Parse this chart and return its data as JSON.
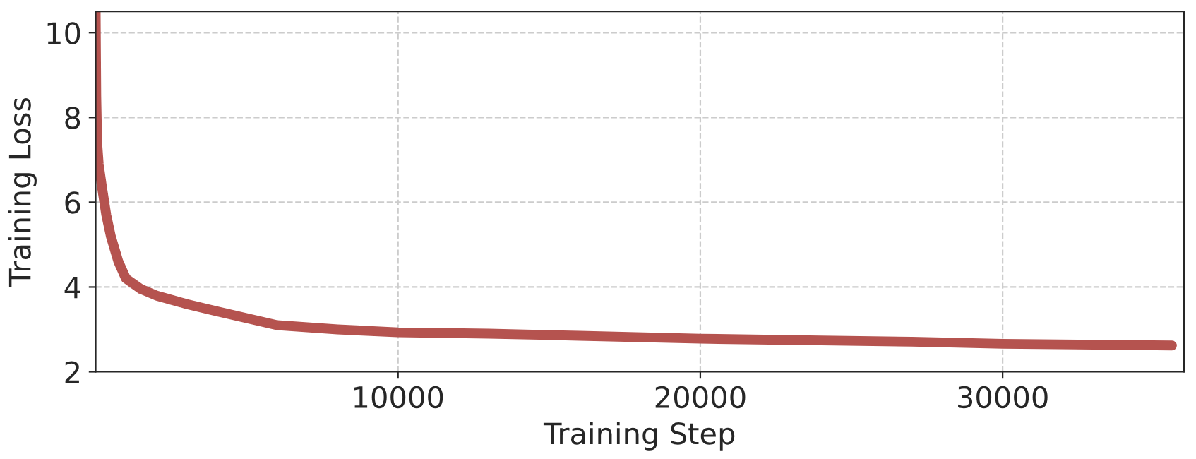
{
  "chart_data": {
    "type": "line",
    "xlabel": "Training Step",
    "ylabel": "Training Loss",
    "x": [
      0,
      20,
      50,
      100,
      200,
      350,
      500,
      750,
      1000,
      1500,
      2000,
      3000,
      4000,
      6000,
      8000,
      10000,
      13000,
      16000,
      20000,
      24000,
      27000,
      30000,
      33000,
      35600
    ],
    "series": [
      {
        "color": "#b5534f",
        "values": [
          10.5,
          8.5,
          7.4,
          6.9,
          6.4,
          5.7,
          5.2,
          4.6,
          4.2,
          3.95,
          3.8,
          3.6,
          3.43,
          3.1,
          3.0,
          2.93,
          2.9,
          2.85,
          2.78,
          2.74,
          2.71,
          2.66,
          2.64,
          2.62
        ]
      }
    ],
    "xlim": [
      0,
      36000
    ],
    "ylim": [
      2,
      10.5
    ],
    "xticks": [
      10000,
      20000,
      30000
    ],
    "yticks": [
      2,
      4,
      6,
      8,
      10
    ],
    "grid": true,
    "line_style": "solid",
    "marker": "none"
  }
}
